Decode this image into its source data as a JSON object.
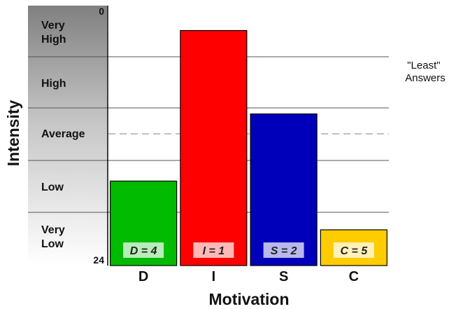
{
  "chart_data": {
    "type": "bar",
    "xlabel": "Motivation",
    "ylabel": "Intensity",
    "y_top_label": "0",
    "y_bottom_label": "24",
    "y_scale": {
      "top": 0,
      "bottom": 24,
      "inverted": true
    },
    "bands": [
      {
        "label_lines": [
          "Very",
          "High"
        ]
      },
      {
        "label_lines": [
          "High"
        ]
      },
      {
        "label_lines": [
          "Average"
        ]
      },
      {
        "label_lines": [
          "Low"
        ]
      },
      {
        "label_lines": [
          "Very",
          "Low"
        ]
      }
    ],
    "categories": [
      "D",
      "I",
      "S",
      "C"
    ],
    "values": [
      16.2,
      2.3,
      10.0,
      20.7
    ],
    "bar_labels": [
      "D = 4",
      "I = 1",
      "S = 2",
      "C = 5"
    ],
    "colors": [
      "#00bb00",
      "#ff0000",
      "#0000bb",
      "#ffcc00"
    ],
    "side_note_lines": [
      "\"Least\"",
      "Answers"
    ],
    "grid": true,
    "average_line": "dashed"
  }
}
